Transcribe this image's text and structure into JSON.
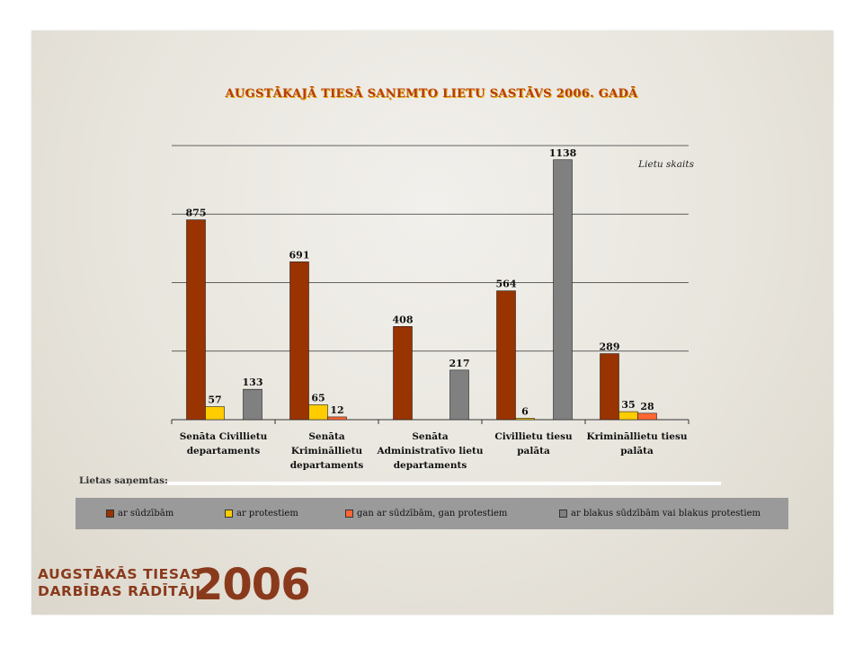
{
  "chart_data": {
    "type": "bar",
    "title": "AUGSTĀKAJĀ TIESĀ SAŅEMTO LIETU SASTĀVS 2006. GADĀ",
    "y_unit_label": "Lietu skaits",
    "xlabel": "Lietas saņemtas:",
    "ylim": [
      0,
      1200
    ],
    "grid": true,
    "legend_position": "bottom",
    "categories": [
      [
        "Senāta Civillietu",
        "departaments"
      ],
      [
        "Senāta",
        "Krimināllietu",
        "departaments"
      ],
      [
        "Senāta",
        "Administratīvo lietu",
        "departaments"
      ],
      [
        "Civillietu tiesu",
        "palāta"
      ],
      [
        "Krimināllietu tiesu",
        "palāta"
      ]
    ],
    "series": [
      {
        "name": "ar sūdzībām",
        "color": "#993300",
        "values": [
          875,
          691,
          408,
          564,
          289
        ]
      },
      {
        "name": "ar protestiem",
        "color": "#ffcc00",
        "values": [
          57,
          65,
          null,
          6,
          35
        ]
      },
      {
        "name": "gan ar sūdzībām, gan protestiem",
        "color": "#ff6633",
        "values": [
          null,
          12,
          null,
          null,
          28
        ]
      },
      {
        "name": "ar blakus sūdzībām vai blakus protestiem",
        "color": "#808080",
        "values": [
          133,
          null,
          217,
          1138,
          null
        ]
      }
    ]
  },
  "branding": {
    "line1": "AUGSTĀKĀS TIESAS",
    "line2": "DARBĪBAS RĀDĪTĀJI",
    "year": "2006"
  }
}
